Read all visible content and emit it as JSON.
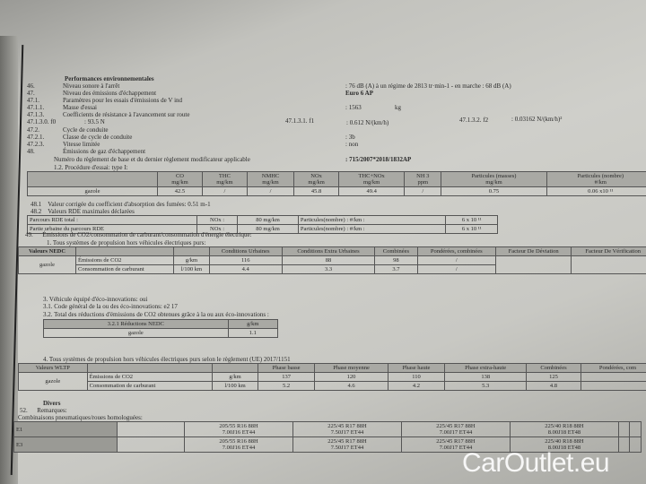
{
  "header": {
    "title": "Performances environnementales"
  },
  "items": [
    {
      "num": "46.",
      "label": "Niveau sonore à l'arrêt",
      "value": ": 76 dB (A)   à un régime de 2813 tr·min-1 - en marche :   68 dB (A)"
    },
    {
      "num": "47.",
      "label": "Niveau des émissions d'échappement",
      "value": "Euro 6 AP"
    },
    {
      "num": "47.1.",
      "label": "Paramètres pour les essais d'émissions de V ind",
      "value": ""
    },
    {
      "num": "47.1.1.",
      "label": "Masse d'essai",
      "value": ": 1563",
      "unit": "kg"
    },
    {
      "num": "47.1.3.",
      "label": "Coefficients de résistance à l'avancement sur route",
      "value": ""
    },
    {
      "num": "47.1.3.0. f0",
      "label": ": 93.5 N",
      "value": ""
    },
    {
      "num": "47.2.",
      "label": "Cycle de conduite",
      "value": ""
    },
    {
      "num": "47.2.1.",
      "label": "Classe de cycle de conduite",
      "value": ": 3b"
    },
    {
      "num": "47.2.3.",
      "label": "Vitesse limitée",
      "value": ": non"
    },
    {
      "num": "48.",
      "label": "Émissions de gaz d'échappement",
      "value": ""
    }
  ],
  "coef": {
    "f1_label": "47.1.3.1. f1",
    "f1_value": ": 0.612 N/(km/h)",
    "f2_label": "47.1.3.2. f2",
    "f2_value": ": 0.03162 N/(km/h)²"
  },
  "regulation": {
    "label": "Numéro du règlement de base et du dernier règlement modificateur applicable",
    "value": ": 715/2007*2018/1832AP"
  },
  "procedure": "1.2. Procédure d'essai: type I:",
  "emissions": {
    "headers": [
      [
        "CO",
        "mg/km"
      ],
      [
        "THC",
        "mg/km"
      ],
      [
        "NMHC",
        "mg/km"
      ],
      [
        "NOx",
        "mg/km"
      ],
      [
        "THC+NOx",
        "mg/km"
      ],
      [
        "NH 3",
        "ppm"
      ],
      [
        "Particules (masses)",
        "mg/km"
      ],
      [
        "Particules (nombre)",
        "#/km"
      ]
    ],
    "row": [
      "gazole",
      "42.5",
      "/",
      "/",
      "45.8",
      "49.4",
      "/",
      "0.75",
      "0.06 x10 ¹¹"
    ]
  },
  "l481": {
    "num": "48.1",
    "text": "Valeur corrigée du coefficient d'absorption des fumées: 0.51 m-1"
  },
  "l482": {
    "num": "48.2",
    "text": "Valeurs RDE maximales déclarées"
  },
  "rde": [
    [
      "Parcours RDE total :",
      "NOx :",
      "80 mg/km",
      "Particules(nombre) : #/km :",
      "6 x 10 ¹¹"
    ],
    [
      "Partie urbaine du parcours RDE",
      "NOx :",
      "80 mg/km",
      "Particules(nombre) : #/km :",
      "6 x 10 ¹¹"
    ]
  ],
  "l49": {
    "num": "49.",
    "text": "Émissions de CO2/consommation de carburant/consommation d'énergie électrique:"
  },
  "nedc_title": "1. Tous systèmes de propulsion hors véhicules électriques purs:",
  "nedc": {
    "headers": [
      "Valeurs NEDC",
      "",
      "",
      "Conditions Urbaines",
      "Conditions Extra Urbaines",
      "Combinées",
      "Pondérées, combinées",
      "Facteur De Déviation",
      "Facteur De Vérification"
    ],
    "fuel": "gazole",
    "rows": [
      [
        "Émissions de CO2",
        "g/km",
        "116",
        "88",
        "98",
        "/"
      ],
      [
        "Consommation de carburant",
        "l/100 km",
        "4.4",
        "3.3",
        "3.7",
        "/"
      ]
    ]
  },
  "eco": {
    "l3": "3. Véhicule équipé d'éco-innovations: oui",
    "l31": "3.1. Code général de la ou des éco-innovations: e2 17",
    "l32": "3.2. Total des réductions d'émissions de CO2 obtenues grâce à la ou aux éco-innovations :"
  },
  "reductions": {
    "headers": [
      "3.2.1 Réductions NEDC",
      "g/km"
    ],
    "row": [
      "gazole",
      "1.1"
    ]
  },
  "wltp_title": "4. Tous systèmes de propulsion hors véhicules électriques purs selon le règlement (UE) 2017/1151",
  "wltp": {
    "headers": [
      "Valeurs WLTP",
      "",
      "",
      "Phase basse",
      "Phase moyenne",
      "Phase haute",
      "Phase extra-haute",
      "Combinées",
      "Pondérées, com"
    ],
    "fuel": "gazole",
    "rows": [
      [
        "Émissions de CO2",
        "g/km",
        "137",
        "120",
        "110",
        "138",
        "125",
        ""
      ],
      [
        "Consommation de carburant",
        "l/100 km",
        "5.2",
        "4.6",
        "4.2",
        "5.3",
        "4.8",
        ""
      ]
    ]
  },
  "divers": {
    "title": "Divers",
    "num": "52.",
    "remarks": "Remarques:",
    "combos": "Combinaisons pneumatiques/roues homologuées:"
  },
  "tires": [
    [
      "E1",
      "205/55 R16 88H",
      "7.00J16 ET44",
      "225/45 R17 88H",
      "7.50J17 ET44",
      "225/45 R17 88H",
      "7.00J17 ET44",
      "225/40 R18 88H",
      "8.00J18 ET48"
    ],
    [
      "E3",
      "205/55 R16 88H",
      "7.00J16 ET44",
      "225/45 R17 88H",
      "7.50J17 ET44",
      "225/45 R17 88H",
      "7.00J17 ET44",
      "225/40 R18 88H",
      "8.00J18 ET48"
    ]
  ],
  "watermark": "CarOutlet.eu"
}
